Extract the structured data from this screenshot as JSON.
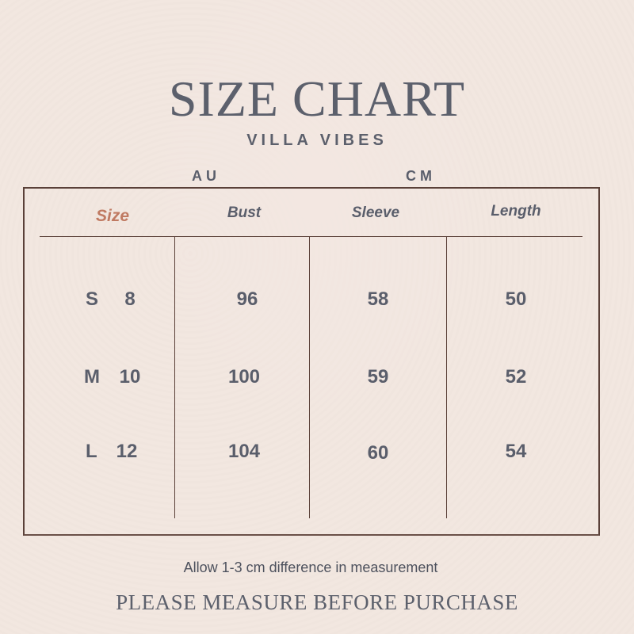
{
  "title": "SIZE CHART",
  "brand": "VILLA VIBES",
  "units": {
    "au": "AU",
    "cm": "CM"
  },
  "headers": [
    "Size",
    "Bust",
    "Sleeve",
    "Length"
  ],
  "rows": [
    {
      "letter": "S",
      "au": "8",
      "bust": "96",
      "sleeve": "58",
      "length": "50"
    },
    {
      "letter": "M",
      "au": "10",
      "bust": "100",
      "sleeve": "59",
      "length": "52"
    },
    {
      "letter": "L",
      "au": "12",
      "bust": "104",
      "sleeve": "60",
      "length": "54"
    }
  ],
  "note": "Allow 1-3 cm difference in measurement",
  "footer": "PLEASE MEASURE BEFORE PURCHASE",
  "colors": {
    "text": "#5c606c",
    "size_header": "#c07a62",
    "border": "#5a4038"
  }
}
